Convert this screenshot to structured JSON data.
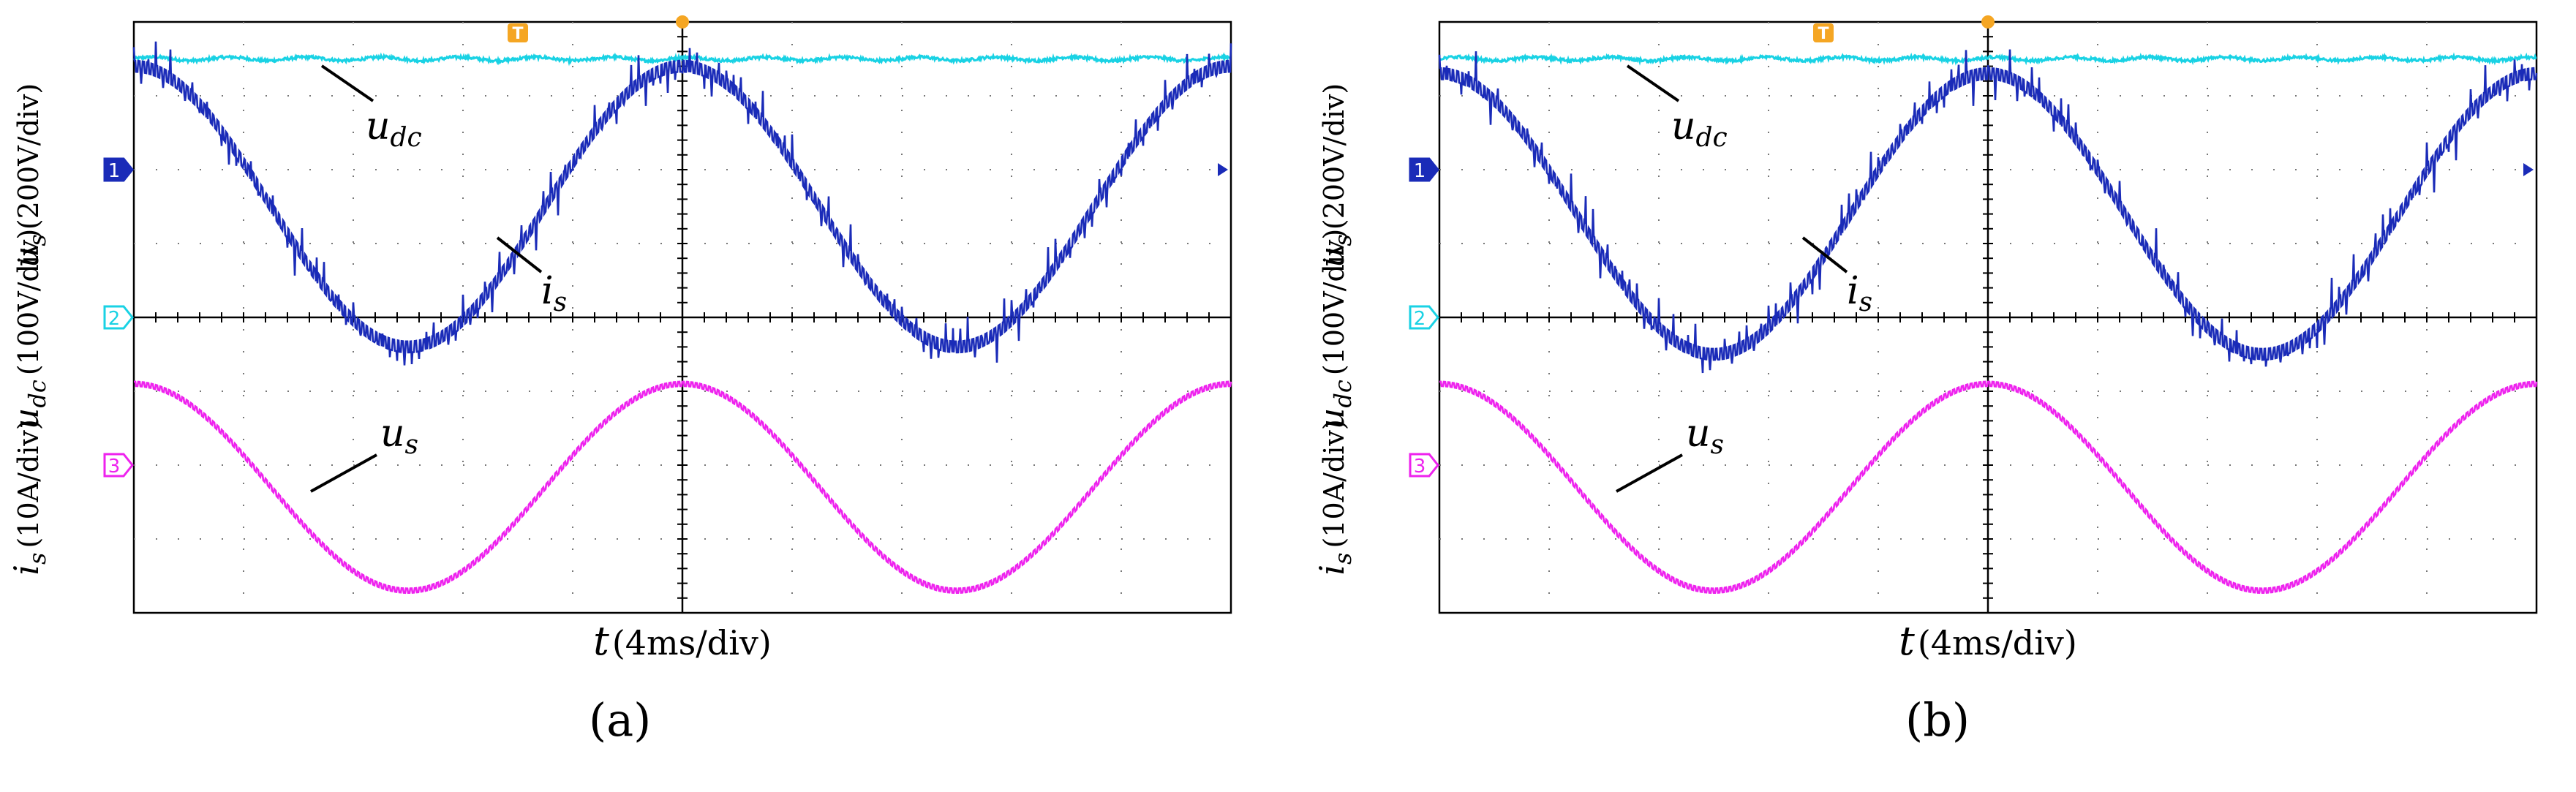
{
  "panels": [
    {
      "id": "a",
      "label": "(a)",
      "ch1_label": {
        "var": "u",
        "sub": "s",
        "scale": "(200V/div)"
      },
      "ch2_label": {
        "var": "u",
        "sub": "dc",
        "scale": "(100V/div)"
      },
      "ch3_label": {
        "var": "i",
        "sub": "s",
        "scale": "(10A/div)"
      },
      "ann_udc": {
        "var": "u",
        "sub": "dc"
      },
      "ann_is": {
        "var": "i",
        "sub": "s"
      },
      "ann_us": {
        "var": "u",
        "sub": "s"
      },
      "xlabel": {
        "var": "t",
        "unit": "(4ms/div)"
      },
      "markers": {
        "ch1": "1",
        "ch2": "2",
        "ch3": "3",
        "trigger": "T"
      }
    },
    {
      "id": "b",
      "label": "(b)",
      "ch1_label": {
        "var": "u",
        "sub": "s",
        "scale": "(200V/div)"
      },
      "ch2_label": {
        "var": "u",
        "sub": "dc",
        "scale": "(100V/div)"
      },
      "ch3_label": {
        "var": "i",
        "sub": "s",
        "scale": "(10A/div)"
      },
      "ann_udc": {
        "var": "u",
        "sub": "dc"
      },
      "ann_is": {
        "var": "i",
        "sub": "s"
      },
      "ann_us": {
        "var": "u",
        "sub": "s"
      },
      "xlabel": {
        "var": "t",
        "unit": "(4ms/div)"
      },
      "markers": {
        "ch1": "1",
        "ch2": "2",
        "ch3": "3",
        "trigger": "T"
      }
    }
  ],
  "chart_data": [
    {
      "type": "line",
      "title": "(a)",
      "xlabel": "t (4ms/div)",
      "x_divisions": 10,
      "y_divisions": 8,
      "grid": true,
      "xlim_ms": [
        0,
        40
      ],
      "series": [
        {
          "name": "u_dc",
          "color": "#19d2e4",
          "kind": "dc",
          "level_div": 3.5,
          "ripple_div": 0.04
        },
        {
          "name": "i_s",
          "color": "#1a2bb8",
          "kind": "sine",
          "amp_div": 1.9,
          "offset_div": 1.5,
          "period_div": 5,
          "phase_deg": 90,
          "ripple_div": 0.15,
          "spike_div": 0.35
        },
        {
          "name": "u_s",
          "color": "#ee22ee",
          "kind": "sine",
          "amp_div": 1.4,
          "offset_div": -2.3,
          "period_div": 5,
          "phase_deg": 90,
          "ripple_div": 0.06
        }
      ]
    },
    {
      "type": "line",
      "title": "(b)",
      "xlabel": "t (4ms/div)",
      "x_divisions": 10,
      "y_divisions": 8,
      "grid": true,
      "xlim_ms": [
        0,
        40
      ],
      "series": [
        {
          "name": "u_dc",
          "color": "#19d2e4",
          "kind": "dc",
          "level_div": 3.5,
          "ripple_div": 0.04
        },
        {
          "name": "i_s",
          "color": "#1a2bb8",
          "kind": "sine",
          "amp_div": 1.9,
          "offset_div": 1.4,
          "period_div": 5,
          "phase_deg": 90,
          "ripple_div": 0.15,
          "spike_div": 0.4
        },
        {
          "name": "u_s",
          "color": "#ee22ee",
          "kind": "sine",
          "amp_div": 1.4,
          "offset_div": -2.3,
          "period_div": 5,
          "phase_deg": 90,
          "ripple_div": 0.06
        }
      ]
    }
  ]
}
